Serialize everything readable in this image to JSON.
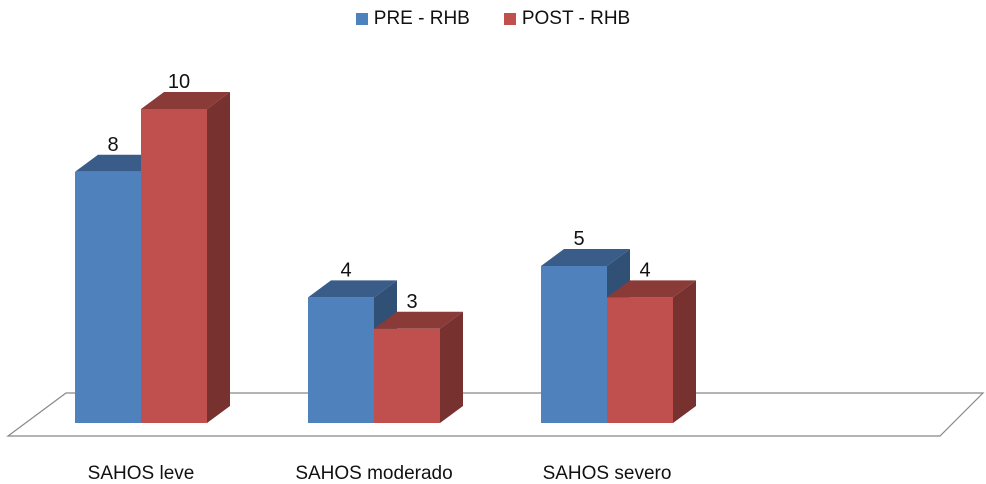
{
  "chart_data": {
    "type": "bar",
    "categories": [
      "SAHOS leve",
      "SAHOS moderado",
      "SAHOS severo"
    ],
    "series": [
      {
        "name": "PRE - RHB",
        "values": [
          8,
          4,
          5
        ],
        "color": "#4F81BD"
      },
      {
        "name": "POST - RHB",
        "values": [
          10,
          3,
          4
        ],
        "color": "#C0504D"
      }
    ],
    "title": "",
    "xlabel": "",
    "ylabel": "",
    "ylim": [
      0,
      10
    ],
    "legend": "top",
    "grid": false,
    "style": "3d-clustered-column"
  }
}
